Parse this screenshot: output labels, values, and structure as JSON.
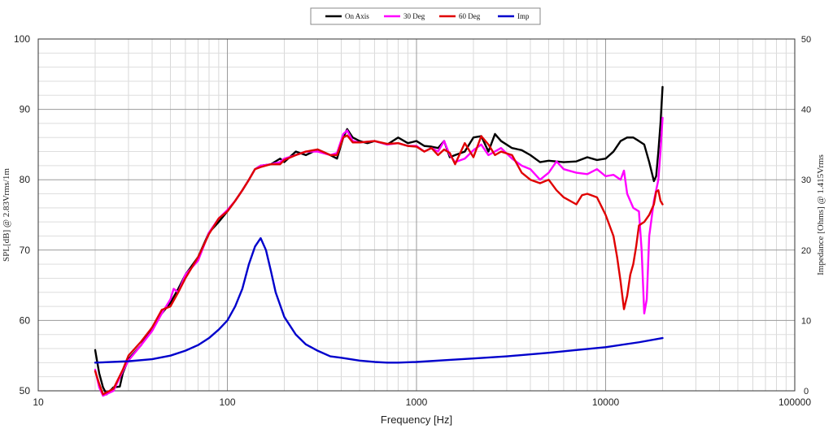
{
  "chart_data": {
    "type": "line",
    "xlabel": "Frequency [Hz]",
    "ylabel": "SPL[dB] @ 2.83Vrms/1m",
    "y2label": "Impedance [Ohms] @ 1.415Vrms",
    "x_scale": "log",
    "xlim": [
      10,
      100000
    ],
    "ylim": [
      50,
      100
    ],
    "y2lim": [
      0,
      50
    ],
    "x_ticks": [
      "10",
      "100",
      "1000",
      "10000",
      "100000"
    ],
    "y_ticks": [
      "50",
      "60",
      "70",
      "80",
      "90",
      "100"
    ],
    "y2_ticks": [
      "0",
      "10",
      "20",
      "30",
      "40",
      "50"
    ],
    "grid": true,
    "legend_position": "top-center",
    "series": [
      {
        "name": "On Axis",
        "color": "#000000",
        "axis": "left",
        "points": [
          [
            20,
            55.8
          ],
          [
            21,
            52.5
          ],
          [
            22,
            50.5
          ],
          [
            23,
            49.5
          ],
          [
            25,
            50.5
          ],
          [
            27,
            50.6
          ],
          [
            28,
            52.5
          ],
          [
            30,
            54.5
          ],
          [
            35,
            56.5
          ],
          [
            40,
            59
          ],
          [
            45,
            61
          ],
          [
            50,
            62.5
          ],
          [
            55,
            64.5
          ],
          [
            60,
            66.5
          ],
          [
            70,
            69
          ],
          [
            80,
            72.5
          ],
          [
            90,
            74
          ],
          [
            100,
            75.5
          ],
          [
            110,
            77
          ],
          [
            120,
            78.5
          ],
          [
            130,
            80
          ],
          [
            140,
            81.5
          ],
          [
            150,
            82
          ],
          [
            170,
            82.2
          ],
          [
            190,
            83
          ],
          [
            200,
            82.5
          ],
          [
            230,
            84
          ],
          [
            260,
            83.5
          ],
          [
            300,
            84.3
          ],
          [
            350,
            83.5
          ],
          [
            380,
            83
          ],
          [
            410,
            86
          ],
          [
            430,
            87.2
          ],
          [
            460,
            86
          ],
          [
            500,
            85.5
          ],
          [
            550,
            85.2
          ],
          [
            600,
            85.5
          ],
          [
            700,
            85
          ],
          [
            800,
            86
          ],
          [
            900,
            85.2
          ],
          [
            1000,
            85.5
          ],
          [
            1100,
            84.8
          ],
          [
            1200,
            84.7
          ],
          [
            1300,
            84.5
          ],
          [
            1400,
            85.5
          ],
          [
            1500,
            83.2
          ],
          [
            1600,
            83.5
          ],
          [
            1800,
            84
          ],
          [
            2000,
            86
          ],
          [
            2200,
            86.2
          ],
          [
            2400,
            84
          ],
          [
            2600,
            86.5
          ],
          [
            2800,
            85.5
          ],
          [
            3200,
            84.5
          ],
          [
            3600,
            84.2
          ],
          [
            4000,
            83.5
          ],
          [
            4500,
            82.5
          ],
          [
            5000,
            82.7
          ],
          [
            6000,
            82.5
          ],
          [
            7000,
            82.6
          ],
          [
            8000,
            83.2
          ],
          [
            9000,
            82.8
          ],
          [
            10000,
            83
          ],
          [
            11000,
            84
          ],
          [
            12000,
            85.5
          ],
          [
            13000,
            86
          ],
          [
            14000,
            86
          ],
          [
            15000,
            85.5
          ],
          [
            16000,
            85
          ],
          [
            17000,
            82.5
          ],
          [
            18000,
            79.8
          ],
          [
            18500,
            80.5
          ],
          [
            19000,
            84
          ],
          [
            19500,
            88
          ],
          [
            20000,
            93.2
          ]
        ]
      },
      {
        "name": "30 Deg",
        "color": "#ff00ff",
        "axis": "left",
        "points": [
          [
            20,
            53
          ],
          [
            21,
            50.5
          ],
          [
            22,
            49.3
          ],
          [
            25,
            50
          ],
          [
            28,
            52.8
          ],
          [
            30,
            54.3
          ],
          [
            35,
            56.5
          ],
          [
            40,
            58.5
          ],
          [
            45,
            61
          ],
          [
            50,
            63
          ],
          [
            52,
            64.5
          ],
          [
            55,
            64
          ],
          [
            60,
            66.5
          ],
          [
            70,
            68.5
          ],
          [
            80,
            72.5
          ],
          [
            90,
            74.5
          ],
          [
            100,
            75.7
          ],
          [
            110,
            77
          ],
          [
            120,
            78.5
          ],
          [
            130,
            80
          ],
          [
            140,
            81.5
          ],
          [
            150,
            82
          ],
          [
            170,
            82.2
          ],
          [
            190,
            82.5
          ],
          [
            200,
            83
          ],
          [
            230,
            83.5
          ],
          [
            260,
            84
          ],
          [
            300,
            84
          ],
          [
            350,
            83.5
          ],
          [
            380,
            83.8
          ],
          [
            410,
            86.5
          ],
          [
            430,
            87
          ],
          [
            460,
            85.5
          ],
          [
            500,
            85.3
          ],
          [
            600,
            85.5
          ],
          [
            700,
            85
          ],
          [
            800,
            85.2
          ],
          [
            900,
            84.8
          ],
          [
            1000,
            84.8
          ],
          [
            1100,
            84
          ],
          [
            1200,
            84.5
          ],
          [
            1300,
            84
          ],
          [
            1400,
            85.5
          ],
          [
            1500,
            83.5
          ],
          [
            1600,
            82.5
          ],
          [
            1800,
            83
          ],
          [
            2000,
            84.2
          ],
          [
            2200,
            85
          ],
          [
            2400,
            83.5
          ],
          [
            2800,
            84.5
          ],
          [
            3200,
            83
          ],
          [
            3600,
            82
          ],
          [
            4000,
            81.5
          ],
          [
            4500,
            80
          ],
          [
            5000,
            81
          ],
          [
            5500,
            82.6
          ],
          [
            6000,
            81.5
          ],
          [
            7000,
            81
          ],
          [
            8000,
            80.8
          ],
          [
            9000,
            81.5
          ],
          [
            10000,
            80.5
          ],
          [
            11000,
            80.7
          ],
          [
            12000,
            80
          ],
          [
            12500,
            81.3
          ],
          [
            13000,
            78
          ],
          [
            14000,
            76
          ],
          [
            15000,
            75.5
          ],
          [
            15500,
            70
          ],
          [
            16000,
            61
          ],
          [
            16500,
            63
          ],
          [
            17000,
            72
          ],
          [
            18000,
            77
          ],
          [
            19000,
            80
          ],
          [
            19500,
            84
          ],
          [
            20000,
            88.8
          ]
        ]
      },
      {
        "name": "60 Deg",
        "color": "#e00000",
        "axis": "left",
        "points": [
          [
            20,
            52.8
          ],
          [
            21,
            51
          ],
          [
            22,
            49.5
          ],
          [
            25,
            50.3
          ],
          [
            28,
            53
          ],
          [
            30,
            55
          ],
          [
            35,
            57
          ],
          [
            40,
            59
          ],
          [
            45,
            61.5
          ],
          [
            50,
            62
          ],
          [
            55,
            64
          ],
          [
            60,
            66
          ],
          [
            70,
            69
          ],
          [
            80,
            72.3
          ],
          [
            90,
            74.5
          ],
          [
            100,
            75.5
          ],
          [
            110,
            77
          ],
          [
            120,
            78.5
          ],
          [
            130,
            80
          ],
          [
            140,
            81.5
          ],
          [
            150,
            81.8
          ],
          [
            170,
            82.2
          ],
          [
            190,
            82.2
          ],
          [
            200,
            82.8
          ],
          [
            230,
            83.5
          ],
          [
            260,
            84
          ],
          [
            300,
            84.3
          ],
          [
            350,
            83.5
          ],
          [
            380,
            83.5
          ],
          [
            410,
            86
          ],
          [
            430,
            86.3
          ],
          [
            460,
            85.3
          ],
          [
            500,
            85.3
          ],
          [
            600,
            85.5
          ],
          [
            700,
            85.1
          ],
          [
            800,
            85.2
          ],
          [
            900,
            84.8
          ],
          [
            1000,
            84.7
          ],
          [
            1100,
            84
          ],
          [
            1200,
            84.5
          ],
          [
            1300,
            83.5
          ],
          [
            1400,
            84.3
          ],
          [
            1500,
            83.8
          ],
          [
            1600,
            82.2
          ],
          [
            1800,
            85.2
          ],
          [
            2000,
            83.2
          ],
          [
            2200,
            86.2
          ],
          [
            2400,
            85
          ],
          [
            2600,
            83.5
          ],
          [
            2800,
            84
          ],
          [
            3200,
            83.5
          ],
          [
            3600,
            81
          ],
          [
            4000,
            80
          ],
          [
            4500,
            79.5
          ],
          [
            5000,
            80
          ],
          [
            5500,
            78.5
          ],
          [
            6000,
            77.5
          ],
          [
            7000,
            76.5
          ],
          [
            7500,
            77.8
          ],
          [
            8000,
            78
          ],
          [
            9000,
            77.5
          ],
          [
            10000,
            75
          ],
          [
            11000,
            72
          ],
          [
            11500,
            69
          ],
          [
            12000,
            65.5
          ],
          [
            12500,
            61.6
          ],
          [
            13000,
            63.5
          ],
          [
            13500,
            66.5
          ],
          [
            14000,
            68
          ],
          [
            14500,
            70.5
          ],
          [
            15000,
            73.5
          ],
          [
            16000,
            74
          ],
          [
            17000,
            75
          ],
          [
            18000,
            76.5
          ],
          [
            18500,
            78.3
          ],
          [
            19000,
            78.5
          ],
          [
            19500,
            77
          ],
          [
            20000,
            76.5
          ]
        ]
      },
      {
        "name": "Imp",
        "color": "#0000cc",
        "axis": "right",
        "points": [
          [
            20,
            4.0
          ],
          [
            30,
            4.2
          ],
          [
            40,
            4.5
          ],
          [
            50,
            5.0
          ],
          [
            60,
            5.7
          ],
          [
            70,
            6.5
          ],
          [
            80,
            7.5
          ],
          [
            90,
            8.7
          ],
          [
            100,
            10
          ],
          [
            110,
            12
          ],
          [
            120,
            14.5
          ],
          [
            130,
            18
          ],
          [
            140,
            20.5
          ],
          [
            150,
            21.7
          ],
          [
            160,
            20
          ],
          [
            170,
            17
          ],
          [
            180,
            14
          ],
          [
            200,
            10.5
          ],
          [
            230,
            8.0
          ],
          [
            260,
            6.6
          ],
          [
            300,
            5.7
          ],
          [
            350,
            4.9
          ],
          [
            400,
            4.7
          ],
          [
            500,
            4.3
          ],
          [
            600,
            4.1
          ],
          [
            700,
            4.0
          ],
          [
            800,
            4.0
          ],
          [
            1000,
            4.1
          ],
          [
            1500,
            4.4
          ],
          [
            2000,
            4.6
          ],
          [
            3000,
            4.9
          ],
          [
            5000,
            5.4
          ],
          [
            7000,
            5.8
          ],
          [
            10000,
            6.2
          ],
          [
            15000,
            6.9
          ],
          [
            20000,
            7.5
          ]
        ]
      }
    ]
  }
}
